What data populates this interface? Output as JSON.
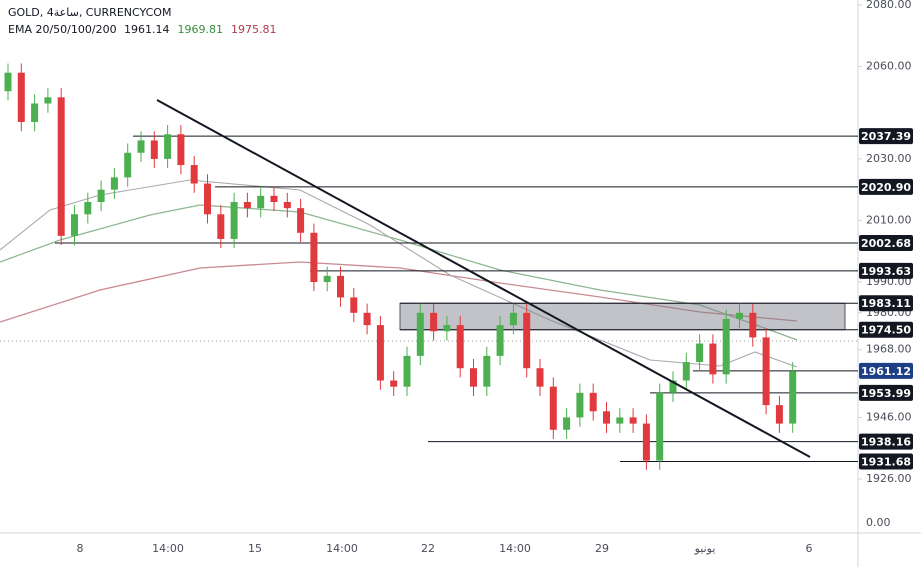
{
  "chart_data": {
    "type": "candlestick",
    "title": "GOLD, 4ساعة, CURRENCYCOM",
    "indicator": {
      "name": "EMA 20/50/100/200",
      "values": [
        1961.14,
        1969.81,
        1975.81
      ],
      "colors": [
        "#131722",
        "#388e3c",
        "#b23a48"
      ]
    },
    "up_color": "#4caf50",
    "down_color": "#e0393e",
    "open": [
      2052,
      2058,
      2042,
      2048,
      2050,
      2005,
      2012,
      2016,
      2020,
      2024,
      2032,
      2036,
      2030,
      2038,
      2028,
      2022,
      2012,
      2004,
      2016,
      2014,
      2018,
      2016,
      2014,
      2006,
      1990,
      1992,
      1985,
      1980,
      1976,
      1958,
      1956,
      1966,
      1980,
      1974,
      1976,
      1962,
      1956,
      1966,
      1976,
      1980,
      1962,
      1956,
      1942,
      1946,
      1954,
      1948,
      1944,
      1946,
      1944,
      1932,
      1954,
      1958,
      1964,
      1970,
      1960,
      1978,
      1980,
      1972,
      1950,
      1944
    ],
    "high": [
      2061,
      2061,
      2051,
      2053,
      2053,
      2015,
      2019,
      2023,
      2027,
      2035,
      2039,
      2039,
      2041,
      2041,
      2031,
      2025,
      2015,
      2019,
      2019,
      2021,
      2021,
      2019,
      2017,
      2009,
      1995,
      1995,
      1988,
      1983,
      1979,
      1961,
      1969,
      1983,
      1983,
      1979,
      1979,
      1965,
      1969,
      1979,
      1983,
      1983,
      1965,
      1959,
      1949,
      1957,
      1957,
      1951,
      1949,
      1949,
      1947,
      1957,
      1961,
      1967,
      1973,
      1973,
      1981,
      1983,
      1983,
      1975,
      1953,
      1964
    ],
    "low": [
      2049,
      2039,
      2039,
      2045,
      2002,
      2002,
      2009,
      2013,
      2017,
      2021,
      2029,
      2027,
      2027,
      2025,
      2019,
      2009,
      2001,
      2001,
      2011,
      2011,
      2013,
      2011,
      2003,
      1987,
      1987,
      1982,
      1977,
      1973,
      1955,
      1953,
      1953,
      1963,
      1971,
      1971,
      1959,
      1953,
      1953,
      1963,
      1973,
      1959,
      1953,
      1939,
      1939,
      1943,
      1945,
      1941,
      1941,
      1941,
      1929,
      1929,
      1951,
      1955,
      1961,
      1957,
      1957,
      1975,
      1969,
      1947,
      1941,
      1941
    ],
    "close": [
      2058,
      2042,
      2048,
      2050,
      2005,
      2012,
      2016,
      2020,
      2024,
      2032,
      2036,
      2030,
      2038,
      2028,
      2022,
      2012,
      2004,
      2016,
      2014,
      2018,
      2016,
      2014,
      2006,
      1990,
      1992,
      1985,
      1980,
      1976,
      1958,
      1956,
      1966,
      1980,
      1974,
      1976,
      1962,
      1956,
      1966,
      1976,
      1980,
      1962,
      1956,
      1942,
      1946,
      1954,
      1948,
      1944,
      1946,
      1944,
      1932,
      1954,
      1958,
      1964,
      1970,
      1960,
      1978,
      1980,
      1972,
      1950,
      1944,
      1961
    ],
    "ylim": [
      1926,
      2080
    ],
    "yticks": [
      {
        "value": 2080,
        "label": "2080.00"
      },
      {
        "value": 2060,
        "label": "2060.00"
      },
      {
        "value": 2030,
        "label": "2030.00"
      },
      {
        "value": 2010,
        "label": "2010.00"
      },
      {
        "value": 1990,
        "label": "1990.00"
      },
      {
        "value": 1980,
        "label": "1980.00"
      },
      {
        "value": 1968,
        "label": "1968.00"
      },
      {
        "value": 1946,
        "label": "1946.00"
      },
      {
        "value": 1926,
        "label": "1926.00"
      }
    ],
    "volume_ytick": {
      "value": 0,
      "label": "0.00"
    },
    "levels": [
      {
        "value": 2037.39,
        "label": "2037.39",
        "color": "#131722"
      },
      {
        "value": 2020.9,
        "label": "2020.90",
        "color": "#131722"
      },
      {
        "value": 2002.68,
        "label": "2002.68",
        "color": "#131722"
      },
      {
        "value": 1993.63,
        "label": "1993.63",
        "color": "#131722"
      },
      {
        "value": 1983.11,
        "label": "1983.11",
        "color": "#131722"
      },
      {
        "value": 1974.5,
        "label": "1974.50",
        "color": "#131722"
      },
      {
        "value": 1961.12,
        "label": "1961.12",
        "color": "#1c3f86"
      },
      {
        "value": 1953.99,
        "label": "1953.99",
        "color": "#131722"
      },
      {
        "value": 1938.16,
        "label": "1938.16",
        "color": "#131722"
      },
      {
        "value": 1931.68,
        "label": "1931.68",
        "color": "#131722"
      }
    ],
    "time_labels": [
      "8",
      "14:00",
      "15",
      "14:00",
      "22",
      "14:00",
      "29",
      "يونيو",
      "6"
    ]
  }
}
